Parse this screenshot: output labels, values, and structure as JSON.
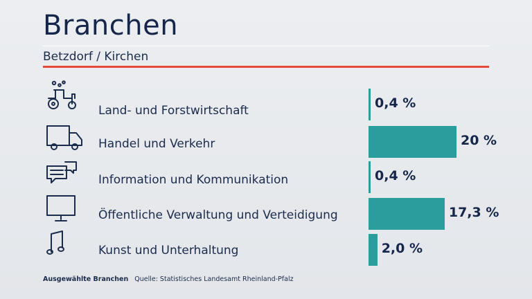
{
  "header": {
    "title": "Branchen",
    "subtitle": "Betzdorf / Kirchen"
  },
  "colors": {
    "accent": "#e6483a",
    "bar": "#2a9d9c",
    "text": "#1b2b4b"
  },
  "chart_data": {
    "type": "bar",
    "orientation": "horizontal",
    "categories": [
      "Land- und Forstwirtschaft",
      "Handel und Verkehr",
      "Information und Kommunikation",
      "Öffentliche Verwaltung und Verteidigung",
      "Kunst und Unterhaltung"
    ],
    "values": [
      0.4,
      20,
      0.4,
      17.3,
      2.0
    ],
    "value_labels": [
      "0,4 %",
      "20 %",
      "0,4 %",
      "17,3 %",
      "2,0 %"
    ],
    "icons": [
      "tractor-icon",
      "truck-icon",
      "chat-bubbles-icon",
      "monitor-icon",
      "music-note-icon"
    ],
    "unit": "%"
  },
  "footer": {
    "note": "Ausgewählte Branchen",
    "source": "Quelle: Statistisches Landesamt Rheinland-Pfalz"
  }
}
